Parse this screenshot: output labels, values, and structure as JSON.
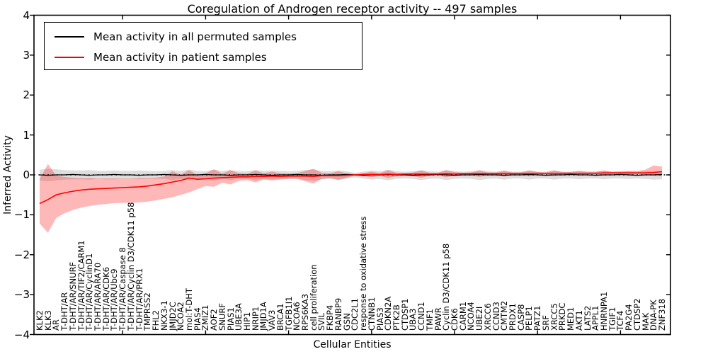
{
  "chart_data": {
    "type": "line",
    "title": "Coregulation of Androgen receptor activity -- 497 samples",
    "xlabel": "Cellular Entities",
    "ylabel": "Inferred Activity",
    "ylim": [
      -4,
      4
    ],
    "y_ticks": [
      4,
      3,
      2,
      1,
      0,
      -1,
      -2,
      -3,
      -4
    ],
    "grid": false,
    "legend_position": "upper left",
    "zero_line": {
      "style": "dotted",
      "color": "#000000",
      "y": 0
    },
    "categories": [
      "KLK2",
      "KLK3",
      "AR",
      "T-DHT/AR",
      "T-DHT/AR/SNURF",
      "T-DHT/AR/TIF2/CARM1",
      "T-DHT/AR/CyclinD1",
      "T-DHT/AR/ARA70",
      "T-DHT/AR/CDK6",
      "T-DHT/AR/Ubc9",
      "T-DHT/AR/Caspase 8",
      "T-DHT/AR/Cyclin D3/CDK11 p58",
      "T-DHT/AR/PRX1",
      "TMPRSS2",
      "FHL2",
      "NKX3-1",
      "JMJD2C",
      "NCOA2",
      "mol:T-DHT",
      "PIAS4",
      "ZMIZ1",
      "AOF2",
      "SNURF",
      "PIAS1",
      "UBE3A",
      "HIP1",
      "NRIP1",
      "JMJD1A",
      "VAV3",
      "BRCA1",
      "TGFB1I1",
      "NCOA6",
      "RPS6KA3",
      "cell proliferation",
      "SVIL",
      "FKBP4",
      "RANBP9",
      "GSN",
      "CDC2L1",
      "response to oxidative stress",
      "CTNNB1",
      "PIAS3",
      "CDKN2A",
      "PTK2B",
      "CTDSP1",
      "UBA3",
      "CCND1",
      "TMF1",
      "PAWR",
      "Cyclin D3/CDK11 p58",
      "CDK6",
      "CARM1",
      "NCOA4",
      "UBE2I",
      "XRCC6",
      "CCND3",
      "CMTM2",
      "PRDX1",
      "CASP8",
      "PELP1",
      "PATZ1",
      "SRF",
      "XRCC5",
      "PRKDC",
      "MED1",
      "AKT1",
      "LATS2",
      "APPL1",
      "HNRNPA1",
      "TGIF1",
      "TCF4",
      "PA2G4",
      "CTDSP2",
      "MAK",
      "DNA-PK",
      "ZNF318"
    ],
    "series": [
      {
        "name": "Mean activity in all permuted samples",
        "color": "#000000",
        "band_color": "rgba(0,0,0,0.13)",
        "values": [
          0.0,
          -0.01,
          0.0,
          0.0,
          0.01,
          0.0,
          -0.01,
          0.0,
          0.0,
          0.01,
          0.0,
          0.0,
          -0.01,
          0.0,
          0.0,
          0.01,
          0.0,
          -0.01,
          0.0,
          0.0,
          0.01,
          0.0,
          0.0,
          -0.01,
          0.0,
          0.0,
          0.01,
          0.0,
          -0.01,
          0.0,
          0.0,
          0.01,
          0.0,
          0.0,
          -0.01,
          0.0,
          0.0,
          0.01,
          0.0,
          -0.01,
          0.0,
          0.0,
          0.01,
          0.0,
          0.0,
          -0.01,
          0.0,
          0.0,
          0.01,
          0.0,
          -0.01,
          0.0,
          0.0,
          0.01,
          0.0,
          0.0,
          -0.01,
          0.0,
          0.0,
          0.01,
          0.0,
          -0.01,
          0.0,
          0.0,
          0.01,
          0.0,
          0.0,
          -0.01,
          0.0,
          0.0,
          0.01,
          0.0,
          -0.01,
          0.0,
          0.0,
          0.01
        ],
        "band_upper": [
          0.13,
          0.15,
          0.14,
          0.12,
          0.11,
          0.11,
          0.12,
          0.1,
          0.1,
          0.11,
          0.1,
          0.1,
          0.11,
          0.1,
          0.09,
          0.1,
          0.12,
          0.1,
          0.13,
          0.1,
          0.09,
          0.13,
          0.1,
          0.12,
          0.1,
          0.09,
          0.12,
          0.1,
          0.11,
          0.1,
          0.09,
          0.1,
          0.12,
          0.14,
          0.1,
          0.09,
          0.11,
          0.09,
          0.05,
          0.08,
          0.11,
          0.09,
          0.13,
          0.09,
          0.08,
          0.09,
          0.12,
          0.09,
          0.08,
          0.12,
          0.09,
          0.08,
          0.09,
          0.12,
          0.09,
          0.08,
          0.11,
          0.08,
          0.08,
          0.11,
          0.08,
          0.08,
          0.11,
          0.08,
          0.08,
          0.1,
          0.08,
          0.08,
          0.1,
          0.08,
          0.08,
          0.09,
          0.08,
          0.09,
          0.1,
          0.09
        ],
        "band_lower": [
          -0.14,
          -0.16,
          -0.14,
          -0.12,
          -0.11,
          -0.11,
          -0.12,
          -0.1,
          -0.11,
          -0.11,
          -0.1,
          -0.1,
          -0.11,
          -0.1,
          -0.1,
          -0.1,
          -0.13,
          -0.1,
          -0.13,
          -0.1,
          -0.1,
          -0.14,
          -0.1,
          -0.13,
          -0.1,
          -0.1,
          -0.13,
          -0.1,
          -0.12,
          -0.1,
          -0.1,
          -0.1,
          -0.13,
          -0.15,
          -0.11,
          -0.1,
          -0.12,
          -0.1,
          -0.06,
          -0.09,
          -0.12,
          -0.1,
          -0.14,
          -0.1,
          -0.09,
          -0.1,
          -0.13,
          -0.1,
          -0.09,
          -0.13,
          -0.1,
          -0.09,
          -0.1,
          -0.13,
          -0.1,
          -0.09,
          -0.12,
          -0.09,
          -0.09,
          -0.12,
          -0.09,
          -0.09,
          -0.12,
          -0.09,
          -0.09,
          -0.11,
          -0.09,
          -0.09,
          -0.11,
          -0.09,
          -0.09,
          -0.1,
          -0.09,
          -0.1,
          -0.12,
          -0.11
        ]
      },
      {
        "name": "Mean activity in patient samples",
        "color": "#ff0000",
        "band_color": "rgba(255,0,0,0.28)",
        "values": [
          -0.72,
          -0.62,
          -0.5,
          -0.45,
          -0.41,
          -0.38,
          -0.36,
          -0.35,
          -0.34,
          -0.33,
          -0.32,
          -0.31,
          -0.3,
          -0.28,
          -0.25,
          -0.22,
          -0.18,
          -0.14,
          -0.08,
          -0.11,
          -0.1,
          -0.08,
          -0.07,
          -0.06,
          -0.05,
          -0.05,
          -0.04,
          -0.04,
          -0.03,
          -0.04,
          -0.03,
          -0.03,
          -0.03,
          -0.04,
          -0.02,
          -0.02,
          -0.02,
          -0.01,
          0.0,
          0.01,
          0.01,
          0.01,
          0.02,
          0.01,
          0.02,
          0.02,
          0.02,
          0.02,
          0.02,
          0.03,
          0.02,
          0.03,
          0.03,
          0.03,
          0.03,
          0.03,
          0.03,
          0.03,
          0.04,
          0.03,
          0.04,
          0.04,
          0.04,
          0.04,
          0.04,
          0.04,
          0.04,
          0.04,
          0.05,
          0.05,
          0.05,
          0.05,
          0.05,
          0.05,
          0.06,
          0.08
        ],
        "band_upper": [
          -0.1,
          0.27,
          -0.02,
          -0.05,
          -0.07,
          -0.08,
          -0.08,
          -0.09,
          -0.09,
          -0.09,
          -0.09,
          -0.09,
          -0.08,
          -0.08,
          -0.07,
          -0.04,
          0.09,
          0.0,
          0.12,
          0.0,
          0.04,
          0.14,
          0.03,
          0.12,
          0.04,
          0.03,
          0.11,
          0.04,
          0.08,
          0.04,
          0.03,
          0.04,
          0.1,
          0.15,
          0.05,
          0.04,
          0.09,
          0.04,
          0.02,
          0.04,
          0.08,
          0.04,
          0.12,
          0.05,
          0.04,
          0.06,
          0.11,
          0.05,
          0.05,
          0.12,
          0.07,
          0.05,
          0.06,
          0.11,
          0.06,
          0.06,
          0.1,
          0.06,
          0.06,
          0.11,
          0.07,
          0.06,
          0.11,
          0.07,
          0.07,
          0.1,
          0.08,
          0.08,
          0.11,
          0.08,
          0.09,
          0.1,
          0.1,
          0.13,
          0.24,
          0.21
        ],
        "band_lower": [
          -1.22,
          -1.45,
          -1.08,
          -0.96,
          -0.88,
          -0.82,
          -0.78,
          -0.75,
          -0.73,
          -0.71,
          -0.7,
          -0.7,
          -0.69,
          -0.67,
          -0.64,
          -0.6,
          -0.56,
          -0.5,
          -0.44,
          -0.36,
          -0.28,
          -0.3,
          -0.2,
          -0.24,
          -0.15,
          -0.13,
          -0.19,
          -0.12,
          -0.14,
          -0.12,
          -0.1,
          -0.1,
          -0.16,
          -0.22,
          -0.1,
          -0.08,
          -0.13,
          -0.07,
          -0.02,
          -0.03,
          -0.06,
          -0.02,
          -0.08,
          -0.03,
          -0.02,
          -0.03,
          -0.07,
          -0.02,
          -0.01,
          -0.06,
          -0.02,
          -0.01,
          -0.01,
          -0.05,
          -0.01,
          -0.01,
          -0.04,
          0.0,
          0.0,
          -0.03,
          0.0,
          0.01,
          -0.03,
          0.01,
          0.01,
          -0.02,
          0.01,
          0.01,
          -0.02,
          0.02,
          0.02,
          0.0,
          0.02,
          0.0,
          -0.02,
          -0.03
        ]
      }
    ]
  }
}
